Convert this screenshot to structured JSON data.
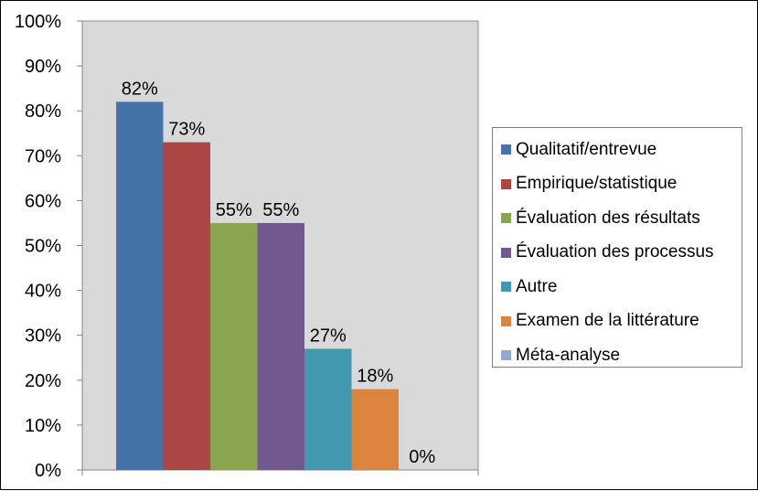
{
  "chart_data": {
    "type": "bar",
    "categories": [
      "Qualitatif/entrevue",
      "Empirique/statistique",
      "Évaluation des résultats",
      "Évaluation des processus",
      "Autre",
      "Examen de la littérature",
      "Méta-analyse"
    ],
    "values": [
      82,
      73,
      55,
      55,
      27,
      18,
      0
    ],
    "value_labels": [
      "82%",
      "73%",
      "55%",
      "55%",
      "27%",
      "18%",
      "0%"
    ],
    "colors": [
      "#4572a7",
      "#aa4643",
      "#89a54e",
      "#71588f",
      "#4198af",
      "#db843d",
      "#93a9cf"
    ],
    "y_ticks": [
      "0%",
      "10%",
      "20%",
      "30%",
      "40%",
      "50%",
      "60%",
      "70%",
      "80%",
      "90%",
      "100%"
    ],
    "ylim": [
      0,
      100
    ],
    "grid": false,
    "plot_background": "#d9d9d9",
    "legend_position": "right"
  }
}
